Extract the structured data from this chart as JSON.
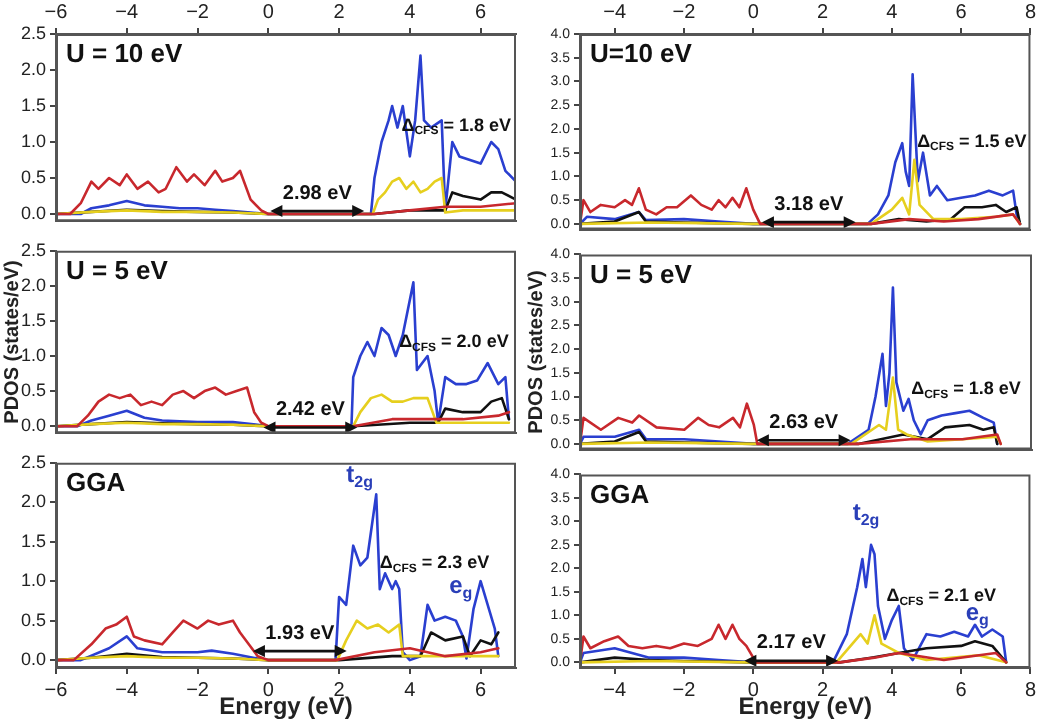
{
  "chart_data": [
    {
      "type": "line",
      "annotations": [
        "U = 10 eV",
        "2.98 eV",
        "Δ$_{CFS}$ = 1.8 eV"
      ],
      "xlim": [
        -6,
        7
      ],
      "x2lim": [
        -6,
        7
      ],
      "x2ticks": [
        -6,
        -4,
        -2,
        0,
        2,
        4,
        6
      ],
      "ylim": [
        -0.1,
        2.5
      ],
      "yticks": [
        {
          "value": 0,
          "label": "0.0"
        },
        {
          "value": 0.5,
          "label": "0.5"
        },
        {
          "value": 1,
          "label": "1.0"
        },
        {
          "value": 1.5,
          "label": "1.5"
        },
        {
          "value": 2,
          "label": "2.0"
        },
        {
          "value": 2.5,
          "label": "2.5"
        }
      ],
      "series": [
        {
          "color": "#c8282d",
          "x": [
            -6,
            -5.6,
            -5.3,
            -5.0,
            -4.8,
            -4.5,
            -4.2,
            -4.0,
            -3.7,
            -3.4,
            -3.1,
            -2.9,
            -2.6,
            -2.3,
            -2.1,
            -1.8,
            -1.5,
            -1.3,
            -1.0,
            -0.8,
            -0.5,
            -0.2,
            0,
            3.0,
            4.0,
            5.0,
            6.0,
            7.0
          ],
          "values": [
            0,
            0,
            0.15,
            0.45,
            0.35,
            0.5,
            0.4,
            0.55,
            0.35,
            0.45,
            0.3,
            0.35,
            0.65,
            0.45,
            0.55,
            0.4,
            0.6,
            0.45,
            0.5,
            0.6,
            0.2,
            0.05,
            0,
            0,
            0.05,
            0.1,
            0.1,
            0.15
          ]
        },
        {
          "color": "#e6cf1e",
          "x": [
            -6,
            -5,
            -4,
            -3,
            -2,
            -1,
            0,
            2.95,
            3.1,
            3.3,
            3.5,
            3.7,
            3.9,
            4.1,
            4.3,
            4.5,
            4.7,
            4.9,
            5.0,
            5.5,
            6,
            7
          ],
          "values": [
            0,
            0.03,
            0.05,
            0.03,
            0.03,
            0.02,
            0,
            0,
            0.2,
            0.3,
            0.45,
            0.5,
            0.35,
            0.45,
            0.3,
            0.35,
            0.45,
            0.5,
            0.02,
            0.05,
            0.05,
            0.05
          ]
        },
        {
          "color": "#111111",
          "x": [
            -6,
            -5,
            -4,
            -3,
            -2,
            -1,
            0,
            3.0,
            4.0,
            5.0,
            5.2,
            5.5,
            6.0,
            6.3,
            6.6,
            7.0
          ],
          "values": [
            0,
            0.03,
            0.06,
            0.04,
            0.03,
            0.02,
            0,
            0,
            0.05,
            0.05,
            0.3,
            0.25,
            0.2,
            0.3,
            0.3,
            0.2
          ]
        },
        {
          "color": "#2a3fd0",
          "x": [
            -6,
            -5.3,
            -5.0,
            -4.5,
            -4.0,
            -3.5,
            -3.0,
            -2.5,
            -2.0,
            -1.5,
            -1.0,
            -0.5,
            0,
            2.9,
            3.0,
            3.2,
            3.4,
            3.5,
            3.65,
            3.8,
            4.0,
            4.15,
            4.3,
            4.4,
            4.6,
            4.9,
            5.0,
            5.2,
            5.4,
            5.7,
            6.0,
            6.3,
            6.5,
            6.7,
            7.0
          ],
          "values": [
            0,
            0,
            0.08,
            0.12,
            0.18,
            0.12,
            0.1,
            0.08,
            0.08,
            0.06,
            0.04,
            0.02,
            0,
            0,
            0.5,
            1.0,
            1.3,
            1.5,
            1.2,
            1.5,
            0.8,
            1.3,
            2.2,
            1.3,
            1.2,
            1.3,
            0.05,
            1.0,
            0.8,
            0.75,
            0.7,
            1.0,
            0.9,
            0.6,
            0.45
          ]
        }
      ]
    },
    {
      "type": "line",
      "annotations": [
        "U = 5 eV",
        "2.42 eV",
        "Δ$_{CFS}$ = 2.0 eV"
      ],
      "ylabel": "PDOS (states/eV)",
      "tick_labels": "y",
      "xlim": [
        -6,
        7
      ],
      "ylim": [
        -0.1,
        2.5
      ],
      "yticks": [
        {
          "value": 0,
          "label": "0.0"
        },
        {
          "value": 0.5,
          "label": "0.5"
        },
        {
          "value": 1,
          "label": "1.0"
        },
        {
          "value": 1.5,
          "label": "1.5"
        },
        {
          "value": 2,
          "label": "2.0"
        },
        {
          "value": 2.5,
          "label": "2.5"
        }
      ],
      "series": [
        {
          "color": "#c8282d",
          "x": [
            -6,
            -5.4,
            -5.1,
            -4.8,
            -4.5,
            -4.2,
            -3.9,
            -3.6,
            -3.3,
            -3.0,
            -2.7,
            -2.4,
            -2.1,
            -1.8,
            -1.5,
            -1.2,
            -0.9,
            -0.6,
            -0.4,
            -0.2,
            0,
            2.4,
            3.5,
            4.5,
            5.5,
            6.5,
            6.8
          ],
          "values": [
            0,
            0,
            0.15,
            0.35,
            0.45,
            0.4,
            0.45,
            0.3,
            0.35,
            0.3,
            0.45,
            0.5,
            0.4,
            0.5,
            0.55,
            0.45,
            0.5,
            0.55,
            0.2,
            0.05,
            0,
            0,
            0.1,
            0.1,
            0.1,
            0.15,
            0.2
          ]
        },
        {
          "color": "#e6cf1e",
          "x": [
            -6,
            -5,
            -4,
            -3,
            -2,
            -1,
            0,
            2.4,
            2.6,
            2.9,
            3.2,
            3.5,
            3.8,
            4.1,
            4.5,
            4.75,
            5.5,
            6.8
          ],
          "values": [
            0,
            0.03,
            0.05,
            0.03,
            0.03,
            0.02,
            0,
            0,
            0.2,
            0.4,
            0.45,
            0.35,
            0.35,
            0.4,
            0.4,
            0.05,
            0.05,
            0.05
          ]
        },
        {
          "color": "#111111",
          "x": [
            -6,
            -5,
            -4,
            -3,
            -2,
            -1,
            0,
            2.4,
            4.0,
            4.8,
            5.0,
            5.5,
            6.0,
            6.3,
            6.6,
            6.8
          ],
          "values": [
            0,
            0.03,
            0.06,
            0.04,
            0.03,
            0.02,
            0,
            0,
            0.05,
            0.05,
            0.25,
            0.2,
            0.2,
            0.35,
            0.4,
            0.1
          ]
        },
        {
          "color": "#2a3fd0",
          "x": [
            -6,
            -5.4,
            -5,
            -4.5,
            -4.0,
            -3.5,
            -3,
            -2,
            -1,
            -0.3,
            0,
            2.35,
            2.4,
            2.6,
            2.8,
            3.0,
            3.2,
            3.4,
            3.6,
            3.8,
            4.1,
            4.2,
            4.5,
            4.7,
            4.8,
            5.0,
            5.3,
            5.6,
            5.9,
            6.2,
            6.5,
            6.7,
            6.8
          ],
          "values": [
            0,
            0,
            0.08,
            0.15,
            0.22,
            0.12,
            0.08,
            0.06,
            0.06,
            0.02,
            0,
            0,
            0.7,
            1.0,
            1.2,
            1.0,
            1.4,
            1.3,
            1.0,
            1.3,
            2.05,
            0.8,
            1.0,
            0.5,
            0.05,
            0.7,
            0.6,
            0.6,
            0.65,
            0.9,
            0.6,
            0.7,
            0.1
          ]
        }
      ]
    },
    {
      "type": "line",
      "annotations": [
        "GGA",
        "1.93 eV",
        "Δ$_{CFS}$ = 2.3 eV",
        "t$_{2g}$",
        "e$_{g}$"
      ],
      "xlabel": "Energy (eV)",
      "xlim": [
        -6,
        7
      ],
      "xticks": [
        -6,
        -4,
        -2,
        0,
        2,
        4,
        6
      ],
      "ylim": [
        -0.1,
        2.5
      ],
      "yticks": [
        {
          "value": 0,
          "label": "0.0"
        },
        {
          "value": 0.5,
          "label": "0.5"
        },
        {
          "value": 1,
          "label": "1.0"
        },
        {
          "value": 1.5,
          "label": "1.5"
        },
        {
          "value": 2,
          "label": "2.0"
        },
        {
          "value": 2.5,
          "label": "2.5"
        }
      ],
      "series": [
        {
          "color": "#c8282d",
          "x": [
            -6,
            -5.5,
            -5.0,
            -4.6,
            -4.3,
            -4.0,
            -3.8,
            -3.5,
            -3.0,
            -2.7,
            -2.4,
            -2.0,
            -1.7,
            -1.4,
            -1.0,
            -0.8,
            -0.3,
            0,
            1.9,
            3.0,
            4.0,
            5.0,
            6.0,
            6.5
          ],
          "values": [
            0,
            0,
            0.2,
            0.4,
            0.45,
            0.55,
            0.3,
            0.25,
            0.2,
            0.35,
            0.5,
            0.4,
            0.5,
            0.45,
            0.5,
            0.35,
            0.05,
            0,
            0,
            0.1,
            0.15,
            0.05,
            0.1,
            0.15
          ]
        },
        {
          "color": "#e6cf1e",
          "x": [
            -6,
            -5,
            -4,
            -3,
            -2,
            -1,
            0,
            1.95,
            2.2,
            2.5,
            2.8,
            3.1,
            3.4,
            3.7,
            3.8,
            5,
            6.5
          ],
          "values": [
            0,
            0.03,
            0.05,
            0.03,
            0.03,
            0.02,
            0,
            0,
            0.25,
            0.5,
            0.4,
            0.45,
            0.35,
            0.45,
            0.05,
            0.05,
            0.05
          ]
        },
        {
          "color": "#111111",
          "x": [
            -6,
            -5,
            -4,
            -3,
            -2,
            -1,
            0,
            2.0,
            3.5,
            4.3,
            4.6,
            5.0,
            5.5,
            5.7,
            6.0,
            6.3,
            6.5
          ],
          "values": [
            0,
            0.03,
            0.08,
            0.04,
            0.03,
            0.02,
            0,
            0,
            0.05,
            0.05,
            0.35,
            0.25,
            0.3,
            0.05,
            0.25,
            0.2,
            0.35
          ]
        },
        {
          "color": "#2a3fd0",
          "x": [
            -6,
            -5.3,
            -4.5,
            -4.0,
            -3.7,
            -3,
            -2,
            -1.6,
            -1,
            -0.3,
            0,
            1.9,
            2.0,
            2.2,
            2.4,
            2.6,
            2.8,
            3.05,
            3.15,
            3.3,
            3.5,
            3.6,
            3.7,
            3.8,
            4.0,
            4.3,
            4.5,
            4.7,
            5.0,
            5.3,
            5.5,
            5.6,
            5.8,
            6.0,
            6.2,
            6.4,
            6.5
          ],
          "values": [
            0,
            0,
            0.15,
            0.3,
            0.15,
            0.1,
            0.1,
            0.12,
            0.08,
            0.02,
            0,
            0,
            0.8,
            0.7,
            1.45,
            1.2,
            1.3,
            2.1,
            0.9,
            1.1,
            0.9,
            1.0,
            0.9,
            0.1,
            0,
            0.05,
            0.7,
            0.5,
            0.55,
            0.5,
            0.3,
            0.02,
            0.65,
            1.0,
            0.7,
            0.4,
            0.05
          ]
        }
      ]
    },
    {
      "type": "line",
      "annotations": [
        "U=10 eV",
        "3.18 eV",
        "Δ$_{CFS}$ = 1.5 eV"
      ],
      "xlim": [
        -5,
        8
      ],
      "x2lim": [
        -5,
        8
      ],
      "x2ticks": [
        -4,
        -2,
        0,
        2,
        4,
        6,
        8
      ],
      "ylim": [
        -0.12,
        4
      ],
      "yticks": [
        {
          "value": 0,
          "label": "0.0"
        },
        {
          "value": 0.5,
          "label": "0.5"
        },
        {
          "value": 1,
          "label": "1.0"
        },
        {
          "value": 1.5,
          "label": "1.5"
        },
        {
          "value": 2,
          "label": "2.0"
        },
        {
          "value": 2.5,
          "label": "2.5"
        },
        {
          "value": 3,
          "label": "3.0"
        },
        {
          "value": 3.5,
          "label": "3.5"
        },
        {
          "value": 4,
          "label": "4.0"
        }
      ],
      "series": [
        {
          "color": "#c8282d",
          "x": [
            -5,
            -4.9,
            -4.7,
            -4.4,
            -4.0,
            -3.7,
            -3.5,
            -3.3,
            -3.1,
            -2.8,
            -2.5,
            -2.2,
            -1.8,
            -1.5,
            -1.2,
            -1.0,
            -0.8,
            -0.6,
            -0.4,
            -0.2,
            0,
            0.2,
            3.4,
            4.5,
            5.5,
            6.5,
            7.5,
            7.7
          ],
          "values": [
            0,
            0.5,
            0.25,
            0.4,
            0.35,
            0.5,
            0.4,
            0.75,
            0.3,
            0.2,
            0.35,
            0.35,
            0.6,
            0.4,
            0.3,
            0.5,
            0.35,
            0.55,
            0.35,
            0.75,
            0.3,
            0,
            0,
            0.1,
            0.05,
            0.1,
            0.2,
            0
          ]
        },
        {
          "color": "#e6cf1e",
          "x": [
            -5,
            -3,
            0,
            3.4,
            4.0,
            4.3,
            4.5,
            4.65,
            4.8,
            5.2,
            6,
            7,
            7.5,
            7.7
          ],
          "values": [
            0,
            0.03,
            0,
            0,
            0.3,
            0.55,
            0.2,
            1.35,
            0.4,
            0.1,
            0.1,
            0.15,
            0.2,
            0
          ]
        },
        {
          "color": "#111111",
          "x": [
            -5,
            -4,
            -3.3,
            -3.1,
            -2,
            0,
            3.4,
            4.2,
            5,
            5.7,
            6.1,
            6.6,
            7.0,
            7.3,
            7.6,
            7.7
          ],
          "values": [
            0,
            0.05,
            0.25,
            0.05,
            0.03,
            0,
            0,
            0.1,
            0.05,
            0.1,
            0.35,
            0.35,
            0.4,
            0.25,
            0.35,
            0
          ]
        },
        {
          "color": "#2a3fd0",
          "x": [
            -5,
            -4.8,
            -4,
            -3.3,
            -3.1,
            -2,
            -1,
            0,
            3.3,
            3.6,
            3.9,
            4.1,
            4.3,
            4.4,
            4.5,
            4.6,
            4.75,
            4.9,
            5.1,
            5.3,
            5.6,
            6.0,
            6.4,
            6.8,
            7.2,
            7.5,
            7.6,
            7.7
          ],
          "values": [
            0,
            0.15,
            0.1,
            0.25,
            0.08,
            0.1,
            0.05,
            0,
            0,
            0.2,
            0.6,
            1.3,
            1.7,
            1.1,
            0.8,
            3.15,
            0.9,
            1.5,
            0.6,
            0.8,
            0.5,
            0.55,
            0.6,
            0.7,
            0.6,
            0.7,
            0.2,
            0
          ]
        }
      ]
    },
    {
      "type": "line",
      "annotations": [
        "U = 5 eV",
        "2.63 eV",
        "Δ$_{CFS}$ = 1.8 eV"
      ],
      "ylabel": "PDOS (states/eV)",
      "tick_labels": "y",
      "xlim": [
        -5,
        8
      ],
      "ylim": [
        -0.12,
        4
      ],
      "yticks": [
        {
          "value": 0,
          "label": "0.0"
        },
        {
          "value": 0.5,
          "label": "0.5"
        },
        {
          "value": 1,
          "label": "1.0"
        },
        {
          "value": 1.5,
          "label": "1.5"
        },
        {
          "value": 2,
          "label": "2.0"
        },
        {
          "value": 2.5,
          "label": "2.5"
        },
        {
          "value": 3,
          "label": "3.0"
        },
        {
          "value": 3.5,
          "label": "3.5"
        },
        {
          "value": 4,
          "label": "4.0"
        }
      ],
      "series": [
        {
          "color": "#c8282d",
          "x": [
            -5,
            -4.9,
            -4.4,
            -3.9,
            -3.5,
            -3.3,
            -2.8,
            -2.0,
            -1.6,
            -1.3,
            -1.0,
            -0.6,
            -0.4,
            -0.2,
            0,
            0.1,
            3,
            4.5,
            6,
            7,
            7.1
          ],
          "values": [
            0,
            0.55,
            0.3,
            0.55,
            0.45,
            0.6,
            0.35,
            0.3,
            0.55,
            0.4,
            0.35,
            0.55,
            0.35,
            0.85,
            0.4,
            0,
            0,
            0.1,
            0.1,
            0.2,
            0
          ]
        },
        {
          "color": "#e6cf1e",
          "x": [
            -5,
            -3,
            0,
            2.8,
            3.6,
            3.8,
            4.0,
            4.15,
            4.4,
            5,
            6,
            7,
            7.1
          ],
          "values": [
            0,
            0.03,
            0,
            0,
            0.4,
            0.3,
            1.4,
            0.3,
            0.2,
            0.05,
            0.1,
            0.15,
            0
          ]
        },
        {
          "color": "#111111",
          "x": [
            -5,
            -4,
            -3.3,
            -3.1,
            -2,
            0,
            3,
            4.3,
            5,
            5.5,
            6.2,
            6.6,
            6.9,
            7.0
          ],
          "values": [
            0,
            0.05,
            0.25,
            0.05,
            0.03,
            0,
            0,
            0.2,
            0.1,
            0.35,
            0.4,
            0.3,
            0.35,
            0
          ]
        },
        {
          "color": "#2a3fd0",
          "x": [
            -5,
            -4.9,
            -4,
            -3.3,
            -3.1,
            -2,
            -1,
            0,
            2.7,
            3.3,
            3.5,
            3.7,
            3.8,
            3.9,
            4.0,
            4.1,
            4.3,
            4.45,
            4.6,
            4.8,
            5.0,
            5.4,
            5.8,
            6.2,
            6.6,
            6.9,
            7.0
          ],
          "values": [
            0,
            0.15,
            0.15,
            0.3,
            0.1,
            0.1,
            0.05,
            0,
            0,
            0.3,
            1.0,
            1.9,
            0.8,
            1.5,
            3.3,
            1.3,
            0.7,
            0.95,
            0.5,
            0.2,
            0.5,
            0.6,
            0.65,
            0.7,
            0.55,
            0.45,
            0
          ]
        }
      ]
    },
    {
      "type": "line",
      "annotations": [
        "GGA",
        "2.17 eV",
        "Δ$_{CFS}$ = 2.1 eV",
        "t$_{2g}$",
        "e$_{g}$"
      ],
      "xlabel": "Energy (eV)",
      "xlim": [
        -5,
        8
      ],
      "xticks": [
        -4,
        -2,
        0,
        2,
        4,
        6,
        8
      ],
      "ylim": [
        -0.12,
        4
      ],
      "yticks": [
        {
          "value": 0,
          "label": "0.0"
        },
        {
          "value": 0.5,
          "label": "0.5"
        },
        {
          "value": 1,
          "label": "1.0"
        },
        {
          "value": 1.5,
          "label": "1.5"
        },
        {
          "value": 2,
          "label": "2.0"
        },
        {
          "value": 2.5,
          "label": "2.5"
        },
        {
          "value": 3,
          "label": "3.0"
        },
        {
          "value": 3.5,
          "label": "3.5"
        },
        {
          "value": 4,
          "label": "4.0"
        }
      ],
      "series": [
        {
          "color": "#c8282d",
          "x": [
            -5,
            -4.9,
            -4.7,
            -4.3,
            -3.9,
            -3.6,
            -3.2,
            -2.8,
            -2.4,
            -2.0,
            -1.6,
            -1.2,
            -1.0,
            -0.8,
            -0.6,
            -0.4,
            -0.2,
            0,
            0.1,
            2.5,
            3.5,
            4.2,
            5.5,
            7,
            7.3
          ],
          "values": [
            0,
            0.55,
            0.3,
            0.45,
            0.55,
            0.35,
            0.3,
            0.35,
            0.3,
            0.4,
            0.35,
            0.5,
            0.8,
            0.5,
            0.8,
            0.5,
            0.35,
            0.1,
            0,
            0,
            0.1,
            0.2,
            0.05,
            0.2,
            0
          ]
        },
        {
          "color": "#e6cf1e",
          "x": [
            -5,
            -3,
            0,
            2.4,
            3.1,
            3.3,
            3.5,
            3.7,
            4.2,
            5,
            6.5,
            7.3
          ],
          "values": [
            0,
            0.03,
            0,
            0,
            0.6,
            0.4,
            1.0,
            0.4,
            0.2,
            0.05,
            0.15,
            0
          ]
        },
        {
          "color": "#111111",
          "x": [
            -5,
            -4,
            -3,
            -2,
            0,
            2.5,
            3.4,
            4.2,
            5,
            6,
            6.4,
            6.9,
            7.3
          ],
          "values": [
            0,
            0.1,
            0.05,
            0.03,
            0,
            0,
            0.1,
            0.2,
            0.3,
            0.35,
            0.45,
            0.35,
            0
          ]
        },
        {
          "color": "#2a3fd0",
          "x": [
            -5,
            -4.9,
            -4,
            -3,
            -2,
            -1,
            0,
            2.3,
            2.7,
            3.0,
            3.15,
            3.25,
            3.4,
            3.5,
            3.6,
            3.8,
            4.0,
            4.2,
            4.35,
            4.6,
            5.0,
            5.4,
            5.8,
            6.2,
            6.4,
            6.6,
            6.9,
            7.2,
            7.3
          ],
          "values": [
            0,
            0.2,
            0.3,
            0.1,
            0.1,
            0.05,
            0,
            0,
            0.6,
            1.6,
            2.2,
            1.6,
            2.5,
            2.3,
            1.2,
            0.5,
            0.9,
            1.2,
            0.3,
            0.05,
            0.6,
            0.55,
            0.65,
            0.55,
            0.8,
            0.55,
            0.7,
            0.55,
            0
          ]
        }
      ]
    }
  ]
}
